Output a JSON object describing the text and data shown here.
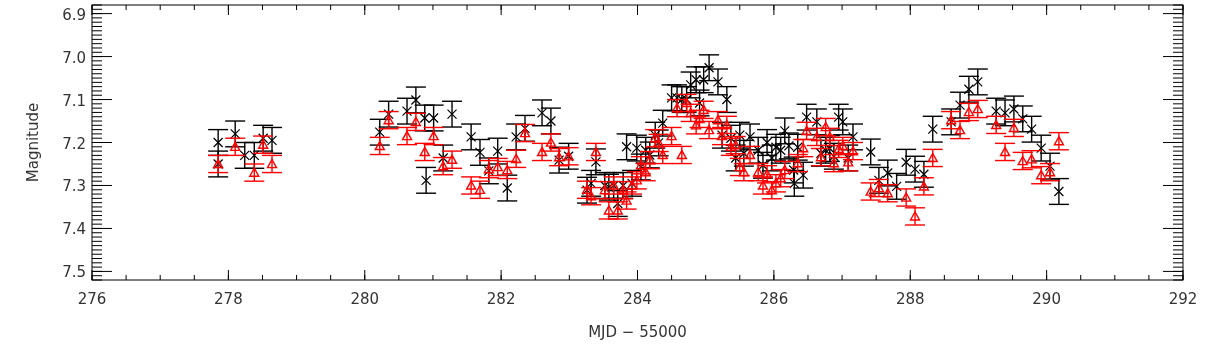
{
  "chart_data": {
    "type": "scatter",
    "xlabel": "MJD − 55000",
    "ylabel": "Magnitude",
    "xlim": [
      276,
      292
    ],
    "xticks": [
      276,
      278,
      280,
      282,
      284,
      286,
      288,
      290,
      292
    ],
    "ylim": [
      7.52,
      6.88
    ],
    "yticks": [
      6.9,
      {
        "value": 7,
        "label": "7.0"
      },
      7.1,
      7.2,
      7.3,
      7.4,
      7.5
    ],
    "grid": false,
    "series": [
      {
        "color": "#000000",
        "marker": "cross",
        "x": [
          277.85,
          277.85,
          278.1,
          278.24,
          278.38,
          278.51,
          278.64,
          280.22,
          280.35,
          280.62,
          280.75,
          280.88,
          280.9,
          281.01,
          281.15,
          281.28,
          281.56,
          281.69,
          281.82,
          281.95,
          282.09,
          282.22,
          282.35,
          282.6,
          282.73,
          282.85,
          282.99,
          283.26,
          283.32,
          283.39,
          283.52,
          283.58,
          283.65,
          283.71,
          283.79,
          283.84,
          283.92,
          283.99,
          284.05,
          284.12,
          284.18,
          284.26,
          284.31,
          284.37,
          284.5,
          284.58,
          284.65,
          284.72,
          284.78,
          284.86,
          284.91,
          284.97,
          285.05,
          285.18,
          285.24,
          285.31,
          285.37,
          285.44,
          285.5,
          285.56,
          285.65,
          285.77,
          285.84,
          285.9,
          285.97,
          286.03,
          286.1,
          286.16,
          286.22,
          286.29,
          286.3,
          286.35,
          286.43,
          286.48,
          286.63,
          286.69,
          286.76,
          286.82,
          286.88,
          286.95,
          287.01,
          287.09,
          287.16,
          287.42,
          287.54,
          287.67,
          287.8,
          287.94,
          288.07,
          288.2,
          288.33,
          288.6,
          288.73,
          288.86,
          288.99,
          289.26,
          289.39,
          289.52,
          289.65,
          289.78,
          289.92,
          290.05,
          290.18
        ],
        "values": [
          7.2,
          7.25,
          7.18,
          7.23,
          7.23,
          7.19,
          7.195,
          7.176,
          7.134,
          7.127,
          7.101,
          7.143,
          7.288,
          7.143,
          7.236,
          7.134,
          7.187,
          7.223,
          7.266,
          7.22,
          7.306,
          7.187,
          7.167,
          7.131,
          7.15,
          7.241,
          7.232,
          7.311,
          7.295,
          7.245,
          7.3,
          7.304,
          7.3,
          7.342,
          7.3,
          7.21,
          7.295,
          7.213,
          7.257,
          7.218,
          7.229,
          7.183,
          7.201,
          7.155,
          7.096,
          7.096,
          7.1,
          7.1,
          7.066,
          7.054,
          7.108,
          7.054,
          7.026,
          7.059,
          7.183,
          7.1,
          7.19,
          7.236,
          7.183,
          7.225,
          7.187,
          7.218,
          7.253,
          7.2,
          7.236,
          7.211,
          7.218,
          7.173,
          7.208,
          7.264,
          7.295,
          7.211,
          7.276,
          7.141,
          7.152,
          7.225,
          7.218,
          7.214,
          7.232,
          7.141,
          7.152,
          7.236,
          7.187,
          7.222,
          7.288,
          7.271,
          7.302,
          7.246,
          7.262,
          7.274,
          7.169,
          7.152,
          7.113,
          7.076,
          7.059,
          7.127,
          7.131,
          7.122,
          7.145,
          7.169,
          7.213,
          7.255,
          7.314
        ],
        "errors": [
          0.03,
          0.03,
          0.03,
          0.03,
          0.03,
          0.03,
          0.03,
          0.03,
          0.03,
          0.03,
          0.03,
          0.03,
          0.03,
          0.03,
          0.03,
          0.03,
          0.03,
          0.03,
          0.03,
          0.03,
          0.03,
          0.03,
          0.03,
          0.03,
          0.03,
          0.03,
          0.03,
          0.03,
          0.03,
          0.03,
          0.03,
          0.03,
          0.03,
          0.03,
          0.03,
          0.03,
          0.03,
          0.03,
          0.03,
          0.03,
          0.03,
          0.03,
          0.03,
          0.03,
          0.03,
          0.03,
          0.03,
          0.03,
          0.03,
          0.03,
          0.03,
          0.03,
          0.03,
          0.03,
          0.03,
          0.03,
          0.03,
          0.03,
          0.03,
          0.03,
          0.03,
          0.03,
          0.03,
          0.03,
          0.03,
          0.03,
          0.03,
          0.03,
          0.03,
          0.03,
          0.03,
          0.03,
          0.03,
          0.03,
          0.03,
          0.03,
          0.03,
          0.03,
          0.03,
          0.03,
          0.03,
          0.03,
          0.03,
          0.03,
          0.03,
          0.03,
          0.03,
          0.03,
          0.03,
          0.03,
          0.03,
          0.03,
          0.03,
          0.03,
          0.03,
          0.03,
          0.03,
          0.03,
          0.03,
          0.03,
          0.03,
          0.03,
          0.03
        ]
      },
      {
        "color": "#ff0000",
        "marker": "triangle",
        "x": [
          277.85,
          278.1,
          278.38,
          278.51,
          278.64,
          280.22,
          280.35,
          280.62,
          280.75,
          280.88,
          281.01,
          281.15,
          281.28,
          281.56,
          281.69,
          281.82,
          281.95,
          282.09,
          282.22,
          282.35,
          282.6,
          282.73,
          282.85,
          282.99,
          283.26,
          283.32,
          283.39,
          283.52,
          283.58,
          283.65,
          283.71,
          283.79,
          283.84,
          283.92,
          283.99,
          284.05,
          284.12,
          284.18,
          284.26,
          284.31,
          284.37,
          284.5,
          284.58,
          284.65,
          284.72,
          284.78,
          284.86,
          284.91,
          284.97,
          285.05,
          285.18,
          285.24,
          285.31,
          285.37,
          285.44,
          285.5,
          285.56,
          285.65,
          285.77,
          285.84,
          285.9,
          285.97,
          286.03,
          286.1,
          286.16,
          286.35,
          286.43,
          286.48,
          286.63,
          286.69,
          286.76,
          286.82,
          286.88,
          286.95,
          287.01,
          287.09,
          287.16,
          287.42,
          287.54,
          287.67,
          287.94,
          288.07,
          288.2,
          288.33,
          288.6,
          288.73,
          288.86,
          288.99,
          289.26,
          289.39,
          289.52,
          289.65,
          289.78,
          289.92,
          290.05,
          290.18
        ],
        "values": [
          7.25,
          7.21,
          7.27,
          7.205,
          7.25,
          7.208,
          7.148,
          7.185,
          7.152,
          7.222,
          7.185,
          7.255,
          7.24,
          7.3,
          7.31,
          7.262,
          7.257,
          7.264,
          7.238,
          7.178,
          7.222,
          7.2,
          7.234,
          7.232,
          7.31,
          7.325,
          7.222,
          7.311,
          7.358,
          7.3,
          7.358,
          7.311,
          7.335,
          7.3,
          7.288,
          7.253,
          7.269,
          7.241,
          7.19,
          7.201,
          7.229,
          7.185,
          7.12,
          7.229,
          7.108,
          7.131,
          7.16,
          7.145,
          7.124,
          7.171,
          7.148,
          7.185,
          7.159,
          7.21,
          7.206,
          7.257,
          7.269,
          7.229,
          7.269,
          7.3,
          7.274,
          7.311,
          7.295,
          7.283,
          7.264,
          7.248,
          7.213,
          7.173,
          7.187,
          7.234,
          7.164,
          7.187,
          7.248,
          7.215,
          7.208,
          7.246,
          7.22,
          7.314,
          7.306,
          7.318,
          7.328,
          7.372,
          7.302,
          7.236,
          7.148,
          7.171,
          7.129,
          7.122,
          7.159,
          7.222,
          7.166,
          7.243,
          7.239,
          7.276,
          7.269,
          7.197
        ],
        "errors": [
          0.02,
          0.02,
          0.02,
          0.02,
          0.02,
          0.02,
          0.02,
          0.02,
          0.02,
          0.02,
          0.02,
          0.02,
          0.02,
          0.02,
          0.02,
          0.02,
          0.02,
          0.02,
          0.02,
          0.02,
          0.02,
          0.02,
          0.02,
          0.02,
          0.02,
          0.02,
          0.02,
          0.02,
          0.02,
          0.02,
          0.02,
          0.02,
          0.02,
          0.02,
          0.02,
          0.02,
          0.02,
          0.02,
          0.02,
          0.02,
          0.02,
          0.02,
          0.02,
          0.02,
          0.02,
          0.02,
          0.02,
          0.02,
          0.02,
          0.02,
          0.02,
          0.02,
          0.02,
          0.02,
          0.02,
          0.02,
          0.02,
          0.02,
          0.02,
          0.02,
          0.02,
          0.02,
          0.02,
          0.02,
          0.02,
          0.02,
          0.02,
          0.02,
          0.02,
          0.02,
          0.02,
          0.02,
          0.02,
          0.02,
          0.02,
          0.02,
          0.02,
          0.02,
          0.02,
          0.02,
          0.02,
          0.02,
          0.02,
          0.02,
          0.02,
          0.02,
          0.02,
          0.02,
          0.02,
          0.02,
          0.02,
          0.02,
          0.02,
          0.02,
          0.02,
          0.02
        ]
      }
    ]
  }
}
